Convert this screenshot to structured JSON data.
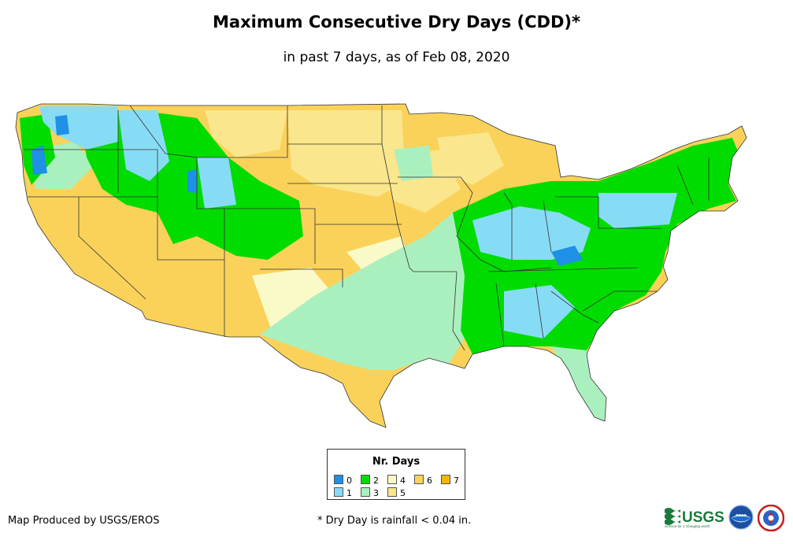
{
  "title": "Maximum Consecutive Dry Days (CDD)*",
  "subtitle": "in past 7 days, as of Feb 08, 2020",
  "legend": {
    "title": "Nr. Days",
    "items": [
      {
        "label": "0",
        "color": "#1e90e6"
      },
      {
        "label": "1",
        "color": "#87dcf5"
      },
      {
        "label": "2",
        "color": "#00dc00"
      },
      {
        "label": "3",
        "color": "#aaf0be"
      },
      {
        "label": "4",
        "color": "#fafac8"
      },
      {
        "label": "5",
        "color": "#fae68c"
      },
      {
        "label": "6",
        "color": "#fad25a"
      },
      {
        "label": "7",
        "color": "#f5b400"
      }
    ]
  },
  "credit": "Map Produced by USGS/EROS",
  "footnote": "* Dry Day is rainfall < 0.04 in.",
  "logos": {
    "usgs": "USGS",
    "usgs_tagline": "science for a changing world",
    "noaa": "noaa",
    "nws": "NATIONAL WEATHER SERVICE"
  }
}
